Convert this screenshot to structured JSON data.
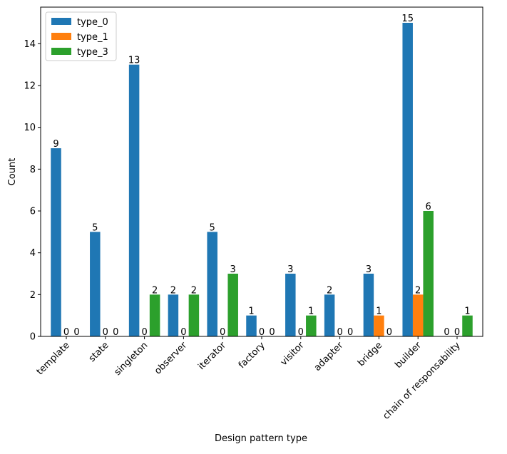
{
  "chart_data": {
    "type": "bar",
    "title": "",
    "xlabel": "Design pattern type",
    "ylabel": "Count",
    "ylim": [
      0,
      15.75
    ],
    "yticks": [
      0,
      2,
      4,
      6,
      8,
      10,
      12,
      14
    ],
    "categories": [
      "template",
      "state",
      "singleton",
      "observer",
      "iterator",
      "factory",
      "visitor",
      "adapter",
      "bridge",
      "builder",
      "chain of responsability"
    ],
    "series": [
      {
        "name": "type_0",
        "color": "#1f77b4",
        "values": [
          9,
          5,
          13,
          2,
          5,
          1,
          3,
          2,
          3,
          15,
          0
        ]
      },
      {
        "name": "type_1",
        "color": "#ff7f0e",
        "values": [
          0,
          0,
          0,
          0,
          0,
          0,
          0,
          0,
          1,
          2,
          0
        ]
      },
      {
        "name": "type_3",
        "color": "#2ca02c",
        "values": [
          0,
          0,
          2,
          2,
          3,
          0,
          1,
          0,
          0,
          6,
          1
        ]
      }
    ],
    "legend_position": "top-left",
    "grid": false
  }
}
